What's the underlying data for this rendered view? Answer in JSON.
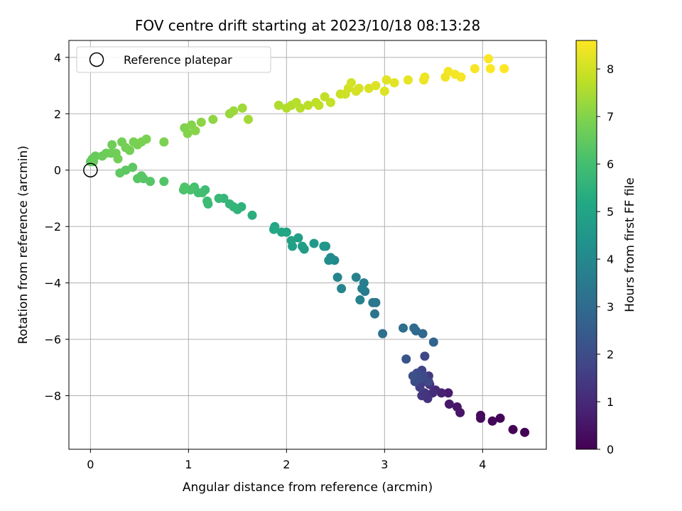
{
  "chart_data": {
    "type": "scatter",
    "title": "FOV centre drift starting at 2023/10/18 08:13:28",
    "xlabel": "Angular distance from reference (arcmin)",
    "ylabel": "Rotation from reference (arcmin)",
    "xlim": [
      -0.22,
      4.65
    ],
    "ylim": [
      -9.9,
      4.6
    ],
    "xticks": [
      0,
      1,
      2,
      3,
      4
    ],
    "yticks": [
      -8,
      -6,
      -4,
      -2,
      0,
      2,
      4
    ],
    "xtick_labels": [
      "0",
      "1",
      "2",
      "3",
      "4"
    ],
    "ytick_labels": [
      "−8",
      "−6",
      "−4",
      "−2",
      "0",
      "2",
      "4"
    ],
    "grid": true,
    "legend": {
      "position": "top-left",
      "entries": [
        "Reference platepar"
      ]
    },
    "reference_marker": {
      "x": 0,
      "y": 0
    },
    "colorbar": {
      "label": "Hours from first FF file",
      "range": [
        0,
        8.6
      ],
      "ticks": [
        0,
        1,
        2,
        3,
        4,
        5,
        6,
        7,
        8
      ],
      "tick_labels": [
        "0",
        "1",
        "2",
        "3",
        "4",
        "5",
        "6",
        "7",
        "8"
      ],
      "colormap": "viridis"
    },
    "series": [
      {
        "x": [
          4.43,
          4.31,
          4.18,
          4.1,
          3.98,
          3.98,
          3.77,
          3.74,
          3.66,
          3.65,
          3.58,
          3.52,
          3.49,
          3.46,
          3.44,
          3.41,
          3.38,
          3.45,
          3.42,
          3.36,
          3.33,
          3.38,
          3.41,
          3.45,
          3.4,
          3.37,
          3.33,
          3.31,
          3.29,
          3.22,
          3.5,
          3.39,
          3.32,
          3.3,
          3.19,
          2.98,
          2.9,
          2.91,
          2.88,
          2.8,
          2.79,
          2.77,
          2.75,
          2.71,
          2.56,
          2.52,
          2.49,
          2.45,
          2.43,
          2.4,
          2.38,
          2.28,
          2.18,
          2.16,
          2.12,
          2.06,
          2.05,
          2.0,
          1.95,
          1.88,
          1.87,
          1.65,
          1.54,
          1.5,
          1.46,
          1.42,
          1.36,
          1.31,
          1.2,
          1.19,
          1.17,
          1.14,
          1.1,
          1.06,
          1.02,
          0.95,
          0.96,
          0.75,
          0.61,
          0.54,
          0.52,
          0.48,
          0.43,
          0.36,
          0.3,
          0.0,
          0.02,
          0.05,
          0.03,
          0.12,
          0.16,
          0.21,
          0.22,
          0.26,
          0.28,
          0.32,
          0.36,
          0.4,
          0.44,
          0.48,
          0.52,
          0.57,
          0.75,
          0.96,
          0.99,
          1.03,
          1.07,
          1.13,
          1.25,
          1.42,
          1.46,
          1.55,
          1.61,
          1.92,
          2.0,
          2.05,
          2.1,
          2.14,
          2.22,
          2.3,
          2.33,
          2.39,
          2.45,
          2.55,
          2.6,
          2.63,
          2.66,
          2.71,
          2.74,
          2.84,
          2.91,
          3.0,
          3.02,
          3.1,
          3.24,
          3.4,
          3.41,
          3.62,
          3.65,
          3.72,
          3.78,
          3.92,
          4.06,
          4.08,
          4.22
        ],
        "y": [
          -9.3,
          -9.2,
          -8.8,
          -8.9,
          -8.7,
          -8.8,
          -8.6,
          -8.4,
          -8.3,
          -7.9,
          -7.9,
          -7.8,
          -7.9,
          -7.6,
          -8.1,
          -7.9,
          -8.0,
          -7.3,
          -7.5,
          -7.7,
          -7.4,
          -7.1,
          -6.6,
          -7.5,
          -7.3,
          -7.4,
          -7.2,
          -7.5,
          -7.3,
          -6.7,
          -6.1,
          -5.8,
          -5.7,
          -5.6,
          -5.6,
          -5.8,
          -5.1,
          -4.7,
          -4.7,
          -4.3,
          -4.0,
          -4.2,
          -4.6,
          -3.8,
          -4.2,
          -3.8,
          -3.2,
          -3.1,
          -3.2,
          -2.7,
          -2.7,
          -2.6,
          -2.8,
          -2.7,
          -2.4,
          -2.7,
          -2.5,
          -2.2,
          -2.2,
          -2.0,
          -2.1,
          -1.6,
          -1.3,
          -1.4,
          -1.3,
          -1.2,
          -1.0,
          -1.0,
          -1.2,
          -1.1,
          -0.7,
          -0.8,
          -0.8,
          -0.6,
          -0.7,
          -0.7,
          -0.6,
          -0.4,
          -0.4,
          -0.3,
          -0.2,
          -0.3,
          0.1,
          0.0,
          -0.1,
          0.3,
          0.4,
          0.5,
          0.3,
          0.5,
          0.6,
          0.6,
          0.9,
          0.6,
          0.4,
          1.0,
          0.8,
          0.7,
          1.0,
          0.9,
          1.0,
          1.1,
          1.0,
          1.5,
          1.3,
          1.6,
          1.4,
          1.7,
          1.8,
          2.0,
          2.1,
          2.2,
          1.8,
          2.3,
          2.2,
          2.3,
          2.4,
          2.2,
          2.3,
          2.4,
          2.3,
          2.6,
          2.4,
          2.7,
          2.7,
          2.9,
          3.1,
          2.8,
          2.9,
          2.9,
          3.0,
          2.8,
          3.2,
          3.1,
          3.2,
          3.2,
          3.3,
          3.3,
          3.5,
          3.4,
          3.3,
          3.6,
          3.95,
          3.6,
          3.6
        ],
        "c": [
          0.0,
          0.05,
          0.1,
          0.15,
          0.2,
          0.25,
          0.5,
          0.55,
          0.6,
          0.7,
          0.8,
          1.0,
          1.1,
          1.2,
          1.25,
          1.3,
          1.35,
          1.4,
          1.5,
          1.55,
          1.6,
          1.7,
          1.8,
          1.85,
          1.9,
          1.95,
          2.0,
          2.05,
          2.1,
          2.2,
          2.8,
          2.85,
          2.9,
          3.0,
          3.1,
          3.2,
          3.3,
          3.35,
          3.4,
          3.5,
          3.6,
          3.65,
          3.7,
          3.75,
          3.85,
          3.9,
          4.0,
          4.1,
          4.2,
          4.4,
          4.5,
          4.6,
          4.7,
          4.75,
          4.8,
          4.85,
          4.9,
          5.0,
          5.05,
          5.1,
          5.15,
          5.4,
          5.5,
          5.55,
          5.6,
          5.65,
          5.7,
          5.75,
          5.8,
          5.85,
          5.9,
          5.95,
          6.0,
          6.05,
          6.1,
          6.15,
          6.2,
          6.25,
          6.3,
          6.32,
          6.34,
          6.36,
          6.4,
          6.42,
          6.45,
          6.5,
          6.55,
          6.58,
          6.6,
          6.62,
          6.65,
          6.68,
          6.7,
          6.72,
          6.74,
          6.76,
          6.78,
          6.8,
          6.82,
          6.84,
          6.86,
          6.88,
          6.9,
          6.95,
          7.0,
          7.02,
          7.05,
          7.1,
          7.15,
          7.25,
          7.3,
          7.35,
          7.4,
          7.55,
          7.6,
          7.62,
          7.65,
          7.68,
          7.7,
          7.75,
          7.78,
          7.8,
          7.85,
          7.9,
          7.95,
          8.0,
          8.02,
          8.05,
          8.08,
          8.1,
          8.15,
          8.2,
          8.22,
          8.25,
          8.3,
          8.35,
          8.38,
          8.42,
          8.45,
          8.48,
          8.5,
          8.52,
          8.56,
          8.58,
          8.6
        ]
      }
    ]
  }
}
